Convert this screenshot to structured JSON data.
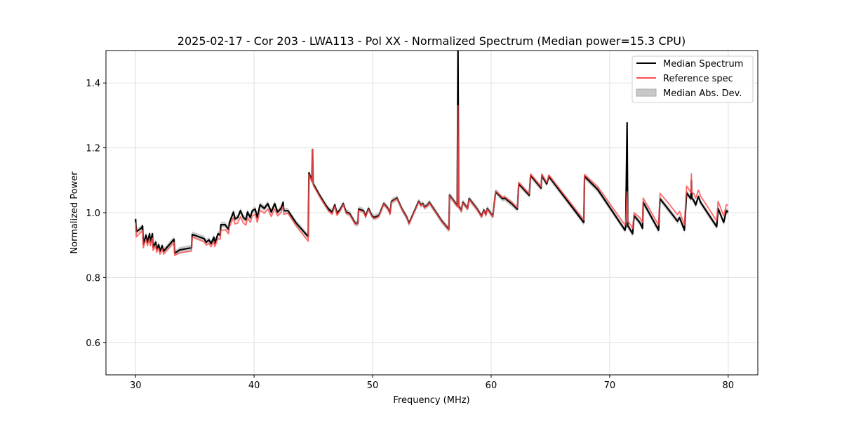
{
  "chart_data": {
    "type": "line",
    "title": "2025-02-17 - Cor 203 - LWA113 - Pol XX - Normalized Spectrum (Median power=15.3 CPU)",
    "xlabel": "Frequency (MHz)",
    "ylabel": "Normalized Power",
    "xlim": [
      27.5,
      82.5
    ],
    "ylim": [
      0.5,
      1.5
    ],
    "xticks": [
      30,
      40,
      50,
      60,
      70,
      80
    ],
    "yticks": [
      0.6,
      0.8,
      1.0,
      1.2,
      1.4
    ],
    "ytick_labels": [
      "0.6",
      "0.8",
      "1.0",
      "1.2",
      "1.4"
    ],
    "grid": true,
    "legend_position": "top-right",
    "legend": [
      "Median Spectrum",
      "Reference spec",
      "Median Abs. Dev."
    ],
    "colors": {
      "median": "#000000",
      "reference": "#ff4d4d",
      "mad": "#c8c8c8",
      "overlap": "#8b0000"
    },
    "mad_halfwidth": 0.009,
    "x": [
      30.0,
      30.06,
      30.24,
      30.47,
      30.59,
      30.65,
      30.88,
      31.0,
      31.18,
      31.24,
      31.42,
      31.47,
      31.71,
      31.77,
      31.95,
      32.06,
      32.24,
      32.36,
      33.24,
      33.3,
      33.72,
      34.72,
      34.78,
      35.78,
      35.96,
      36.19,
      36.37,
      36.61,
      36.67,
      36.96,
      37.14,
      37.2,
      37.55,
      37.85,
      37.91,
      38.26,
      38.38,
      38.61,
      38.85,
      39.09,
      39.32,
      39.44,
      39.68,
      39.85,
      40.09,
      40.27,
      40.5,
      40.86,
      41.15,
      41.45,
      41.74,
      41.98,
      42.27,
      42.45,
      42.51,
      42.86,
      43.57,
      44.57,
      44.63,
      44.87,
      44.93,
      44.99,
      45.52,
      45.99,
      46.28,
      46.58,
      46.81,
      46.99,
      47.29,
      47.52,
      47.76,
      48.05,
      48.53,
      48.76,
      48.82,
      49.23,
      49.41,
      49.65,
      49.94,
      50.12,
      50.53,
      50.94,
      51.3,
      51.47,
      51.59,
      52.06,
      52.48,
      52.89,
      53.07,
      53.89,
      54.07,
      54.25,
      54.36,
      54.66,
      54.78,
      55.37,
      55.84,
      56.43,
      56.49,
      57.14,
      57.2,
      57.26,
      57.32,
      57.49,
      57.61,
      58.02,
      58.14,
      58.79,
      59.2,
      59.38,
      59.56,
      59.67,
      60.14,
      60.38,
      60.97,
      61.15,
      61.74,
      62.21,
      62.33,
      63.22,
      63.33,
      64.22,
      64.28,
      64.69,
      64.87,
      67.82,
      67.88,
      69.0,
      71.3,
      71.36,
      71.47,
      71.53,
      71.59,
      71.94,
      72.06,
      72.54,
      72.77,
      72.83,
      74.13,
      74.25,
      74.9,
      75.72,
      75.9,
      76.31,
      76.49,
      76.86,
      76.9,
      76.94,
      77.08,
      77.26,
      77.49,
      77.67,
      79.03,
      79.15,
      79.62,
      79.85,
      80.0
    ],
    "median": [
      0.981,
      0.942,
      0.946,
      0.952,
      0.959,
      0.903,
      0.931,
      0.909,
      0.935,
      0.909,
      0.935,
      0.894,
      0.909,
      0.888,
      0.901,
      0.881,
      0.898,
      0.881,
      0.918,
      0.875,
      0.885,
      0.892,
      0.933,
      0.92,
      0.909,
      0.916,
      0.905,
      0.924,
      0.905,
      0.935,
      0.931,
      0.963,
      0.963,
      0.948,
      0.968,
      1.002,
      0.981,
      0.985,
      1.006,
      0.985,
      0.978,
      1.002,
      0.985,
      1.006,
      1.011,
      0.985,
      1.024,
      1.013,
      1.028,
      1.002,
      1.028,
      1.002,
      1.013,
      1.032,
      1.006,
      1.006,
      0.967,
      0.926,
      1.123,
      1.099,
      1.195,
      1.089,
      1.054,
      1.026,
      1.011,
      1.002,
      1.024,
      0.998,
      1.011,
      1.028,
      1.002,
      0.998,
      0.967,
      0.967,
      1.011,
      1.006,
      0.989,
      1.013,
      0.991,
      0.985,
      0.991,
      1.028,
      1.013,
      0.998,
      1.035,
      1.045,
      1.011,
      0.985,
      0.967,
      1.035,
      1.024,
      1.028,
      1.017,
      1.024,
      1.032,
      1.0,
      0.974,
      0.948,
      1.054,
      1.022,
      1.52,
      1.017,
      1.017,
      1.006,
      1.032,
      1.013,
      1.043,
      1.013,
      0.989,
      1.008,
      0.994,
      1.013,
      0.989,
      1.065,
      1.043,
      1.045,
      1.028,
      1.011,
      1.089,
      1.054,
      1.115,
      1.076,
      1.115,
      1.089,
      1.112,
      0.97,
      1.112,
      1.071,
      0.946,
      0.957,
      1.277,
      0.957,
      0.957,
      0.935,
      0.991,
      0.97,
      0.952,
      1.032,
      0.946,
      1.043,
      1.013,
      0.974,
      0.985,
      0.946,
      1.061,
      1.043,
      1.1,
      1.043,
      1.039,
      1.024,
      1.05,
      1.032,
      0.957,
      1.013,
      0.97,
      1.006,
      1.002
    ],
    "reference": [
      0.97,
      0.925,
      0.932,
      0.94,
      0.945,
      0.892,
      0.918,
      0.898,
      0.92,
      0.898,
      0.922,
      0.884,
      0.898,
      0.878,
      0.89,
      0.872,
      0.888,
      0.872,
      0.908,
      0.868,
      0.876,
      0.882,
      0.925,
      0.91,
      0.9,
      0.905,
      0.895,
      0.912,
      0.895,
      0.92,
      0.918,
      0.945,
      0.948,
      0.935,
      0.955,
      0.985,
      0.965,
      0.968,
      0.988,
      0.968,
      0.962,
      0.985,
      0.97,
      0.99,
      0.995,
      0.97,
      1.008,
      0.998,
      1.012,
      0.988,
      1.012,
      0.99,
      1.0,
      1.02,
      0.995,
      0.998,
      0.958,
      0.912,
      1.118,
      1.095,
      1.195,
      1.085,
      1.05,
      1.022,
      1.005,
      0.995,
      1.02,
      0.992,
      1.008,
      1.025,
      0.998,
      0.995,
      0.965,
      0.965,
      1.008,
      1.003,
      0.986,
      1.01,
      0.988,
      0.982,
      0.988,
      1.026,
      1.011,
      0.995,
      1.033,
      1.043,
      1.009,
      0.983,
      0.965,
      1.033,
      1.022,
      1.026,
      1.015,
      1.022,
      1.03,
      0.998,
      0.972,
      0.946,
      1.052,
      1.02,
      1.33,
      1.015,
      1.015,
      1.004,
      1.03,
      1.011,
      1.041,
      1.011,
      0.987,
      1.006,
      0.992,
      1.011,
      0.987,
      1.067,
      1.047,
      1.049,
      1.032,
      1.015,
      1.093,
      1.058,
      1.119,
      1.08,
      1.119,
      1.093,
      1.116,
      0.978,
      1.118,
      1.08,
      0.962,
      0.972,
      1.065,
      0.972,
      0.972,
      0.952,
      1.0,
      0.985,
      0.97,
      1.045,
      0.962,
      1.06,
      1.032,
      0.994,
      1.004,
      0.962,
      1.082,
      1.062,
      1.12,
      1.062,
      1.06,
      1.045,
      1.07,
      1.052,
      0.975,
      1.035,
      0.99,
      1.025,
      1.022
    ]
  }
}
